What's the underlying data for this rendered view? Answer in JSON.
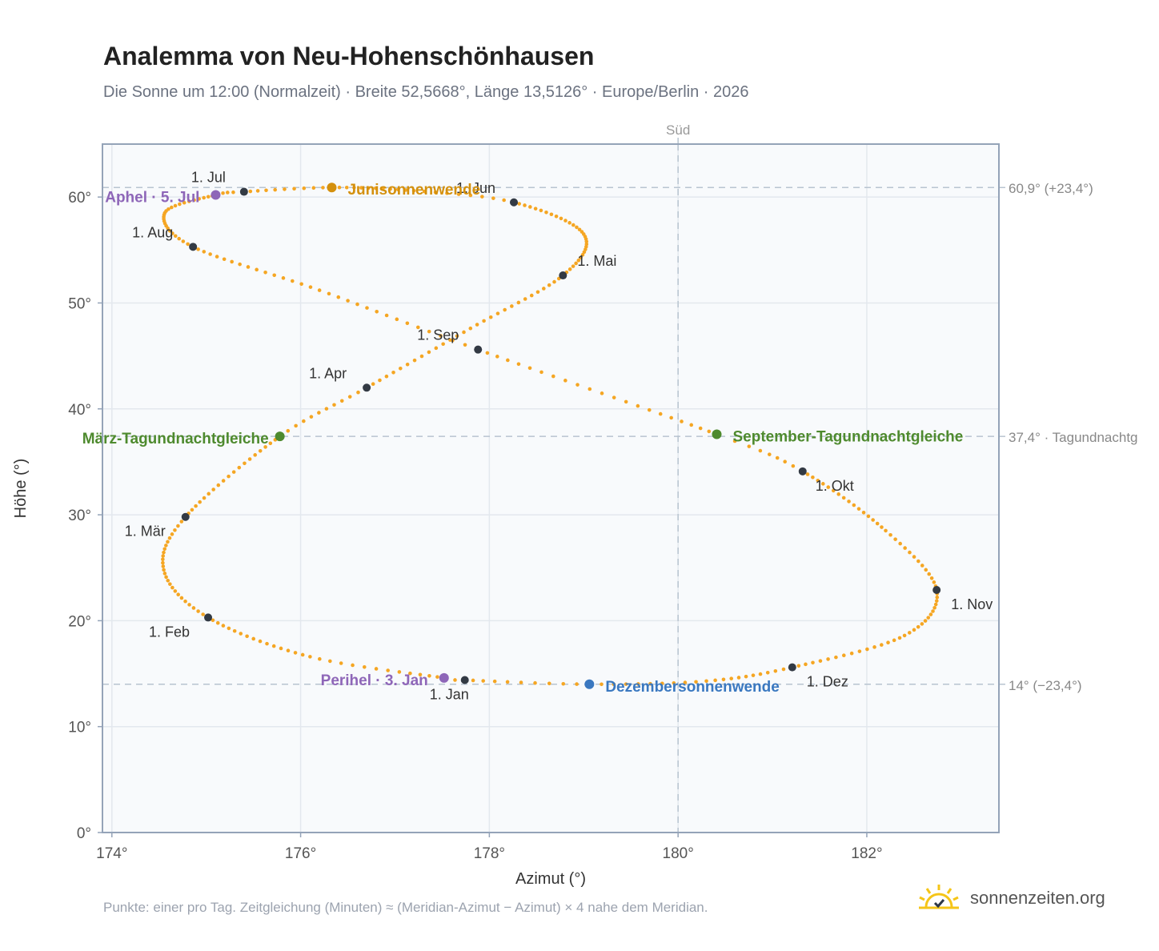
{
  "header": {
    "title": "Analemma von Neu-Hohenschönhausen",
    "subtitle": "Die Sonne um 12:00 (Normalzeit) · Breite 52,5668°, Länge 13,5126° · Europe/Berlin · 2026"
  },
  "footer": {
    "note": "Punkte: einer pro Tag. Zeitgleichung (Minuten) ≈ (Meridian-Azimut − Azimut) × 4 nahe dem Meridian.",
    "brand": "sonnenzeiten.org"
  },
  "chart_data": {
    "type": "scatter",
    "title": "Analemma von Neu-Hohenschönhausen",
    "xlabel": "Azimut (°)",
    "ylabel": "Höhe (°)",
    "xlim": [
      173.9,
      183.4
    ],
    "ylim": [
      0,
      65
    ],
    "x_ticks": [
      174,
      176,
      178,
      180,
      182
    ],
    "x_tick_labels": [
      "174°",
      "176°",
      "178°",
      "180°",
      "182°"
    ],
    "y_ticks": [
      0,
      10,
      20,
      30,
      40,
      50,
      60
    ],
    "y_tick_labels": [
      "0°",
      "10°",
      "20°",
      "30°",
      "40°",
      "50°",
      "60°"
    ],
    "grid": true,
    "colors": {
      "path": "#f5a623",
      "month": "#333a44",
      "equinox": "#4e8a2e",
      "june_solstice": "#d4900d",
      "december_solstice": "#3a78c0",
      "apsis": "#8e66b8",
      "reference_line": "#b8c4d0",
      "plot_background": "#f8fafc",
      "plot_border": "#94a3b8"
    },
    "meridian": {
      "azimuth": 180,
      "label": "Süd"
    },
    "reference_lines": [
      {
        "altitude": 60.9,
        "label": "60,9° (+23,4°)"
      },
      {
        "altitude": 37.4,
        "label": "37,4° · Tagundnachtg"
      },
      {
        "altitude": 14.0,
        "label": "14° (−23,4°)"
      }
    ],
    "month_points": [
      {
        "label": "1. Jan",
        "az": 177.74,
        "alt": 14.4
      },
      {
        "label": "1. Feb",
        "az": 175.02,
        "alt": 20.3
      },
      {
        "label": "1. Mär",
        "az": 174.78,
        "alt": 29.8
      },
      {
        "label": "1. Apr",
        "az": 176.7,
        "alt": 42.0
      },
      {
        "label": "1. Mai",
        "az": 178.78,
        "alt": 52.6
      },
      {
        "label": "1. Jun",
        "az": 178.26,
        "alt": 59.5
      },
      {
        "label": "1. Jul",
        "az": 175.4,
        "alt": 60.5
      },
      {
        "label": "1. Aug",
        "az": 174.86,
        "alt": 55.3
      },
      {
        "label": "1. Sep",
        "az": 177.88,
        "alt": 45.6
      },
      {
        "label": "1. Okt",
        "az": 181.32,
        "alt": 34.1
      },
      {
        "label": "1. Nov",
        "az": 182.74,
        "alt": 22.9
      },
      {
        "label": "1. Dez",
        "az": 181.21,
        "alt": 15.6
      }
    ],
    "special_points": [
      {
        "label": "März-Tagundnachtgleiche",
        "az": 175.78,
        "alt": 37.4,
        "kind": "equinox"
      },
      {
        "label": "Junisonnenwende",
        "az": 176.33,
        "alt": 60.9,
        "kind": "june_solstice"
      },
      {
        "label": "September-Tagundnachtgleiche",
        "az": 180.41,
        "alt": 37.6,
        "kind": "equinox"
      },
      {
        "label": "Dezembersonnenwende",
        "az": 179.06,
        "alt": 14.0,
        "kind": "december_solstice"
      },
      {
        "label": "Perihel · 3. Jan",
        "az": 177.52,
        "alt": 14.6,
        "kind": "apsis"
      },
      {
        "label": "Aphel · 5. Jul",
        "az": 175.1,
        "alt": 60.2,
        "kind": "apsis"
      }
    ]
  }
}
